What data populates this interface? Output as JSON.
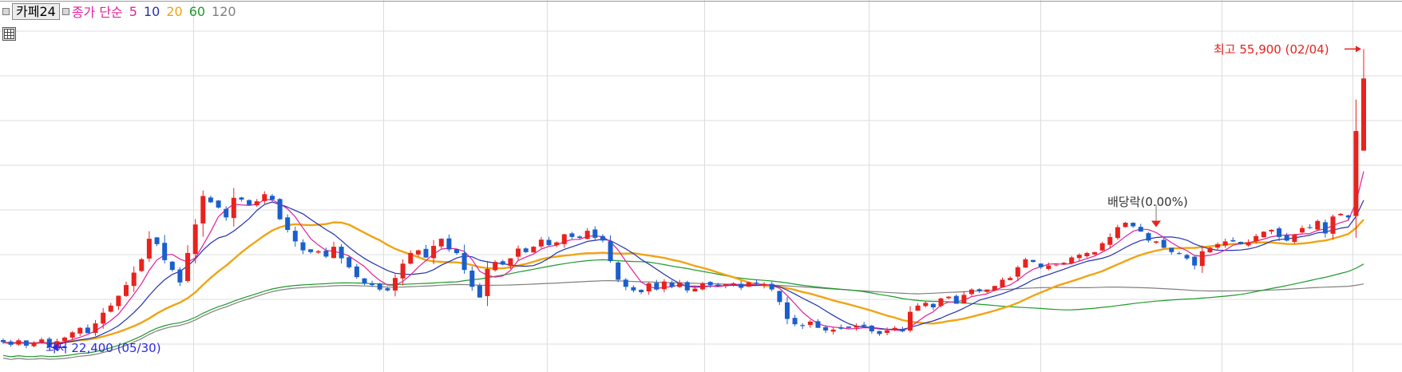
{
  "legend": {
    "name": "카페24",
    "ma_prefix": "종가 단순",
    "periods": [
      "5",
      "10",
      "20",
      "60",
      "120"
    ]
  },
  "annotations": {
    "high": "최고 55,900 (02/04)",
    "low": "최저 22,400 (05/30)",
    "dividend": "배당락(0.00%)"
  },
  "colors": {
    "up": "#e8221e",
    "down": "#1a5fcc",
    "grid": "#dcdcdc",
    "ma5": "#e0209a",
    "ma10": "#2232b0",
    "ma20": "#f0a414",
    "ma60": "#1e9a2a",
    "ma120": "#808080",
    "high_label": "#e8221e",
    "low_label": "#2a2ae0",
    "dividend_marker": "#e8221e"
  },
  "chart_data": {
    "type": "candlestick",
    "y_range": [
      20000,
      58000
    ],
    "grid": true,
    "overlays": [
      "MA5",
      "MA10",
      "MA20",
      "MA60",
      "MA120"
    ],
    "x_range": [
      "05/30",
      "02/04"
    ],
    "high": {
      "value": 55900,
      "date": "02/04"
    },
    "low": {
      "value": 22400,
      "date": "05/30"
    },
    "series_close": [
      23000,
      22700,
      23200,
      22600,
      22900,
      23300,
      22400,
      23100,
      23500,
      24100,
      24600,
      24000,
      25100,
      26300,
      27100,
      28200,
      29400,
      30800,
      32300,
      34600,
      34000,
      32200,
      31100,
      29700,
      33000,
      36200,
      39400,
      38700,
      38100,
      37000,
      39200,
      39000,
      38400,
      38800,
      39600,
      39000,
      36800,
      35600,
      34300,
      33300,
      33100,
      33200,
      32600,
      33700,
      32400,
      31400,
      30300,
      29600,
      29400,
      28900,
      28800,
      30200,
      31800,
      33000,
      33300,
      32500,
      33800,
      34600,
      33400,
      33000,
      31100,
      29200,
      28000,
      31200,
      32000,
      31700,
      32400,
      33500,
      33100,
      33700,
      34500,
      33900,
      34200,
      35100,
      34800,
      34700,
      35500,
      34700,
      34400,
      32100,
      30000,
      29200,
      28800,
      28600,
      29600,
      28900,
      29800,
      29200,
      29700,
      28800,
      29000,
      29600,
      29400,
      29300,
      29500,
      29600,
      29100,
      29700,
      29600,
      29500,
      28900,
      27500,
      25600,
      25000,
      24800,
      25300,
      24600,
      24300,
      24400,
      24500,
      24600,
      24800,
      24800,
      24200,
      23900,
      24300,
      24600,
      24200,
      26400,
      27100,
      27400,
      26900,
      27900,
      28100,
      27300,
      28300,
      28900,
      28700,
      28900,
      29300,
      30000,
      30200,
      31400,
      32300,
      32000,
      31400,
      31600,
      31700,
      31900,
      32500,
      32800,
      33000,
      33100,
      34100,
      34800,
      35900,
      36400,
      36000,
      35400,
      34400,
      34300,
      33600,
      33100,
      32900,
      32400,
      31600,
      33200,
      33600,
      34000,
      34300,
      34300,
      34000,
      34200,
      34900,
      35400,
      35600,
      34800,
      34400,
      35100,
      35800,
      35800,
      36600,
      35200,
      37100,
      37400,
      37000,
      46700,
      52600
    ]
  }
}
